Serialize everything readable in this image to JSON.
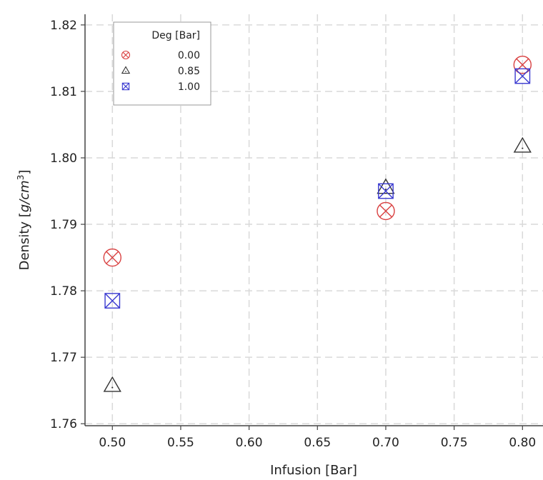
{
  "chart_data": {
    "type": "scatter",
    "xlabel": "Infusion [Bar]",
    "ylabel": {
      "prefix": "Density [",
      "unit": "g/cm",
      "superscript": "3",
      "suffix": "]"
    },
    "xlim": [
      0.48,
      0.815
    ],
    "ylim": [
      1.7597,
      1.8216
    ],
    "x_ticks": [
      "0.50",
      "0.55",
      "0.60",
      "0.65",
      "0.70",
      "0.75",
      "0.80"
    ],
    "y_ticks": [
      "1.76",
      "1.77",
      "1.78",
      "1.79",
      "1.80",
      "1.81",
      "1.82"
    ],
    "grid": true,
    "legend": {
      "title": "Deg [Bar]",
      "placement": "top-left"
    },
    "series": [
      {
        "name": "0.00",
        "marker": "circle-x",
        "color": "#d94040",
        "points": [
          {
            "x": 0.5,
            "y": 1.785
          },
          {
            "x": 0.7,
            "y": 1.792
          },
          {
            "x": 0.8,
            "y": 1.814
          }
        ]
      },
      {
        "name": "0.85",
        "marker": "triangle",
        "color": "#333333",
        "points": [
          {
            "x": 0.5,
            "y": 1.7657
          },
          {
            "x": 0.7,
            "y": 1.7955
          },
          {
            "x": 0.8,
            "y": 1.8017
          }
        ]
      },
      {
        "name": "1.00",
        "marker": "square-x",
        "color": "#3a3ad0",
        "points": [
          {
            "x": 0.5,
            "y": 1.7785
          },
          {
            "x": 0.7,
            "y": 1.795
          },
          {
            "x": 0.8,
            "y": 1.8123
          }
        ]
      }
    ]
  }
}
